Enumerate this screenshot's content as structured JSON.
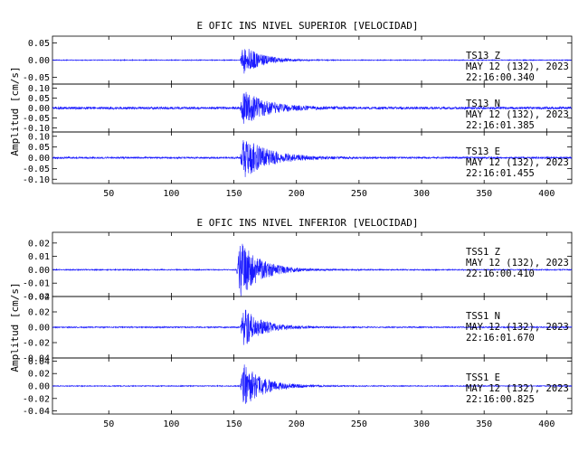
{
  "chart_data": [
    {
      "type": "line",
      "title": "E OFIC INS NIVEL SUPERIOR [VELOCIDAD]",
      "ylabel": "Amplitud [cm/s]",
      "xlabel": "",
      "xlim": [
        5,
        420
      ],
      "x_ticks": [
        50,
        100,
        150,
        200,
        250,
        300,
        350,
        400
      ],
      "x_tick_labels": [
        "50",
        "100",
        "150",
        "200",
        "250",
        "300",
        "350",
        "400"
      ],
      "grid": false,
      "series_color": "#1a1aff",
      "panels": [
        {
          "name": "TS13 Z",
          "station_label": "TS13   Z",
          "date_label": "MAY 12 (132), 2023",
          "time_label": "22:16:00.340",
          "ylim": [
            -0.07,
            0.07
          ],
          "y_ticks": [
            -0.05,
            0.0,
            0.05
          ],
          "y_tick_labels": [
            "-0.05",
            "0.00",
            "0.05"
          ],
          "noise_level": 0.0012,
          "onset": 155,
          "peak": 0.055,
          "decay": 14
        },
        {
          "name": "TS13 N",
          "station_label": "TS13   N",
          "date_label": "MAY 12 (132), 2023",
          "time_label": "22:16:01.385",
          "ylim": [
            -0.12,
            0.12
          ],
          "y_ticks": [
            -0.1,
            -0.05,
            0.0,
            0.05,
            0.1
          ],
          "y_tick_labels": [
            "-0.10",
            "-0.05",
            "0.00",
            "0.05",
            "0.10"
          ],
          "noise_level": 0.006,
          "onset": 155,
          "peak": 0.1,
          "decay": 18
        },
        {
          "name": "TS13 E",
          "station_label": "TS13   E",
          "date_label": "MAY 12 (132), 2023",
          "time_label": "22:16:01.455",
          "ylim": [
            -0.12,
            0.12
          ],
          "y_ticks": [
            -0.1,
            -0.05,
            0.0,
            0.05,
            0.1
          ],
          "y_tick_labels": [
            "-0.10",
            "-0.05",
            "0.00",
            "0.05",
            "0.10"
          ],
          "noise_level": 0.004,
          "onset": 155,
          "peak": 0.11,
          "decay": 20
        }
      ]
    },
    {
      "type": "line",
      "title": "E OFIC INS NIVEL INFERIOR [VELOCIDAD]",
      "ylabel": "Amplitud [cm/s]",
      "xlabel": "",
      "xlim": [
        5,
        420
      ],
      "x_ticks": [
        50,
        100,
        150,
        200,
        250,
        300,
        350,
        400
      ],
      "x_tick_labels": [
        "50",
        "100",
        "150",
        "200",
        "250",
        "300",
        "350",
        "400"
      ],
      "grid": false,
      "series_color": "#1a1aff",
      "panels": [
        {
          "name": "TSS1 Z",
          "station_label": "TSS1   Z",
          "date_label": "MAY 12 (132), 2023",
          "time_label": "22:16:00.410",
          "ylim": [
            -0.02,
            0.028
          ],
          "y_ticks": [
            -0.02,
            -0.01,
            0.0,
            0.01,
            0.02
          ],
          "y_tick_labels": [
            "-0.02",
            "-0.01",
            "0.00",
            "0.01",
            "0.02"
          ],
          "noise_level": 0.0004,
          "onset": 152,
          "peak": 0.026,
          "decay": 16
        },
        {
          "name": "TSS1 N",
          "station_label": "TSS1   N",
          "date_label": "MAY 12 (132), 2023",
          "time_label": "22:16:01.670",
          "ylim": [
            -0.04,
            0.04
          ],
          "y_ticks": [
            -0.04,
            -0.02,
            0.0,
            0.02,
            0.04
          ],
          "y_tick_labels": [
            "-0.04",
            "-0.02",
            "0.00",
            "0.02",
            "0.04"
          ],
          "noise_level": 0.0008,
          "onset": 155,
          "peak": 0.03,
          "decay": 15
        },
        {
          "name": "TSS1 E",
          "station_label": "TSS1   E",
          "date_label": "MAY 12 (132), 2023",
          "time_label": "22:16:00.825",
          "ylim": [
            -0.045,
            0.045
          ],
          "y_ticks": [
            -0.04,
            -0.02,
            0.0,
            0.02,
            0.04
          ],
          "y_tick_labels": [
            "-0.04",
            "-0.02",
            "0.00",
            "0.02",
            "0.04"
          ],
          "noise_level": 0.0007,
          "onset": 155,
          "peak": 0.042,
          "decay": 16
        }
      ]
    }
  ]
}
